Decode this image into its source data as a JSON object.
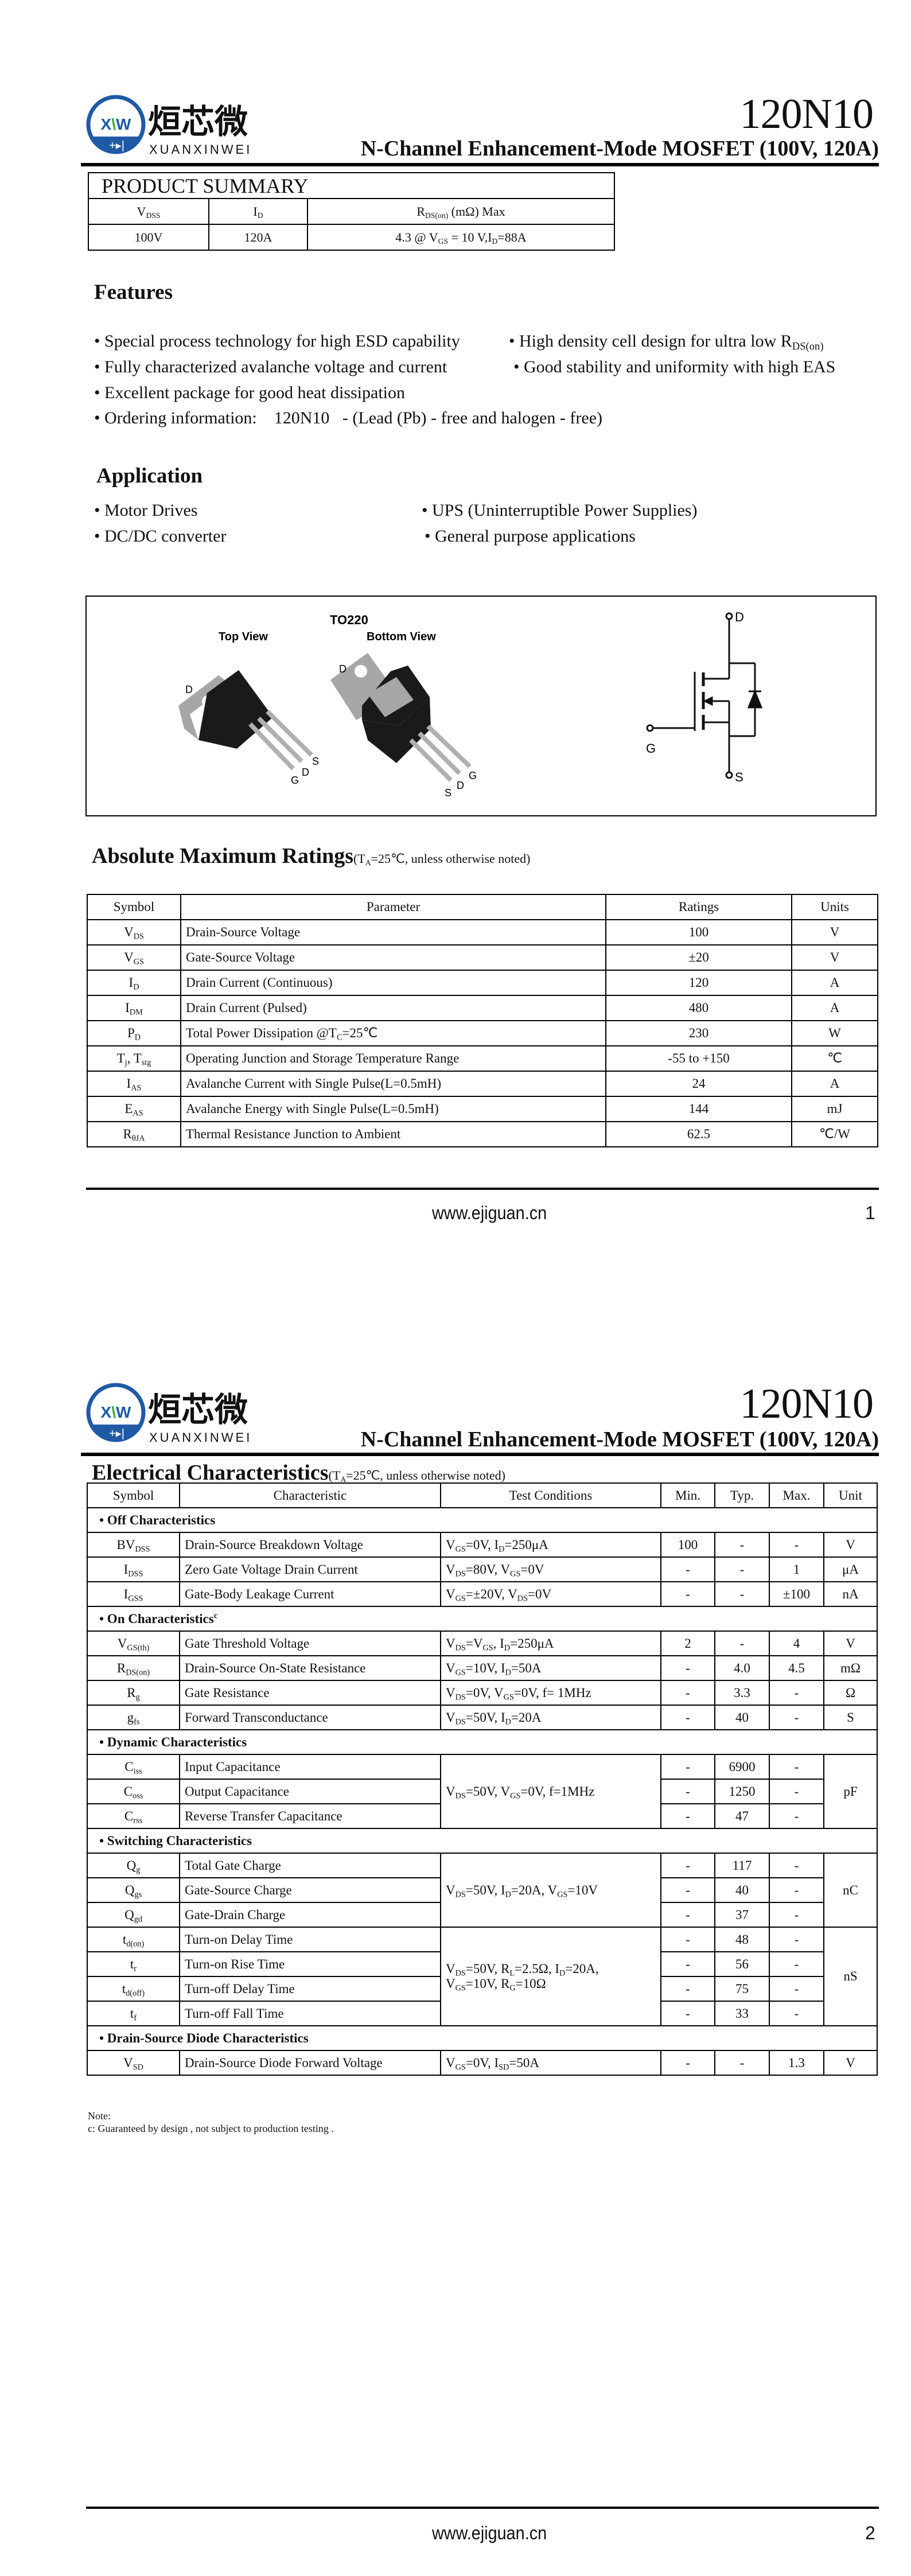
{
  "header": {
    "logo_text_cn": "烜芯微",
    "logo_text_en": "XUANXINWEI",
    "logo_mark": "XW",
    "part_number": "120N10",
    "subtitle": "N-Channel Enhancement-Mode MOSFET (100V, 120A)"
  },
  "colors": {
    "logo_blue": "#1f5aa6",
    "logo_green": "#3aa935",
    "package_gray": "#a6a6a6",
    "package_black": "#1a1a1a"
  },
  "product_summary": {
    "title": "PRODUCT SUMMARY",
    "headers": [
      "V_{DSS}",
      "I_{D}",
      "R_{DS(on)} (mΩ) Max"
    ],
    "values": [
      "100V",
      "120A",
      "4.3 @ V_{GS} = 10 V,I_{D}=88A"
    ]
  },
  "features": {
    "heading": "Features",
    "items": [
      "• Special process technology for high ESD capability",
      "• High density cell design for ultra low R_{DS(on)}",
      "• Fully characterized avalanche voltage and current",
      "• Good stability and uniformity with high EAS",
      "• Excellent package for good heat dissipation",
      "• Ordering information:    120N10   - (Lead (Pb) - free and halogen - free)"
    ]
  },
  "application": {
    "heading": "Application",
    "items": [
      "• Motor Drives",
      "• UPS (Uninterruptible Power Supplies)",
      "• DC/DC converter",
      "• General purpose applications"
    ]
  },
  "package": {
    "name": "TO220",
    "top_view": "Top View",
    "bottom_view": "Bottom View",
    "top_pins": {
      "tab": "D",
      "g": "G",
      "d": "D",
      "s": "S"
    },
    "bottom_pins": {
      "tab": "D",
      "s": "S",
      "d": "D",
      "g": "G"
    },
    "schematic": {
      "drain": "D",
      "gate": "G",
      "source": "S"
    }
  },
  "abs_max": {
    "title": "Absolute Maximum Ratings",
    "note": "(T_{A}=25℃, unless otherwise noted)",
    "headers": [
      "Symbol",
      "Parameter",
      "Ratings",
      "Units"
    ],
    "rows": [
      [
        "V_{DS}",
        "Drain-Source Voltage",
        "100",
        "V"
      ],
      [
        "V_{GS}",
        "Gate-Source Voltage",
        "±20",
        "V"
      ],
      [
        "I_{D}",
        "Drain Current (Continuous)",
        "120",
        "A"
      ],
      [
        "I_{DM}",
        "Drain Current (Pulsed)",
        "480",
        "A"
      ],
      [
        "P_{D}",
        "Total Power Dissipation @T_{C}=25℃",
        "230",
        "W"
      ],
      [
        "T_{j}, T_{stg}",
        "Operating Junction and Storage Temperature Range",
        "-55 to +150",
        "℃"
      ],
      [
        "I_{AS}",
        "Avalanche Current with Single Pulse(L=0.5mH)",
        "24",
        "A"
      ],
      [
        "E_{AS}",
        "Avalanche Energy with Single Pulse(L=0.5mH)",
        "144",
        "mJ"
      ],
      [
        "R_{θJA}",
        "Thermal Resistance Junction to Ambient",
        "62.5",
        "℃/W"
      ]
    ]
  },
  "electrical": {
    "title": "Electrical Characteristics",
    "note": "(T_{A}=25℃, unless otherwise noted)",
    "headers": [
      "Symbol",
      "Characteristic",
      "Test Conditions",
      "Min.",
      "Typ.",
      "Max.",
      "Unit"
    ],
    "sections": [
      {
        "title": "• Off Characteristics",
        "groups": [
          {
            "conditions": [
              "V_{GS}=0V, I_{D}=250μA"
            ],
            "unit": "V",
            "rows": [
              [
                "BV_{DSS}",
                "Drain-Source Breakdown Voltage",
                "100",
                "-",
                "-"
              ]
            ]
          },
          {
            "conditions": [
              "V_{DS}=80V, V_{GS}=0V"
            ],
            "unit": "μA",
            "rows": [
              [
                "I_{DSS}",
                "Zero Gate Voltage Drain Current",
                "-",
                "-",
                "1"
              ]
            ]
          },
          {
            "conditions": [
              "V_{GS}=±20V, V_{DS}=0V"
            ],
            "unit": "nA",
            "rows": [
              [
                "I_{GSS}",
                "Gate-Body Leakage Current",
                "-",
                "-",
                "±100"
              ]
            ]
          }
        ]
      },
      {
        "title": "• On Characteristics^{c}",
        "groups": [
          {
            "conditions": [
              "V_{DS}=V_{GS}, I_{D}=250μA"
            ],
            "unit": "V",
            "rows": [
              [
                "V_{GS(th)}",
                "Gate Threshold Voltage",
                "2",
                "-",
                "4"
              ]
            ]
          },
          {
            "conditions": [
              "V_{GS}=10V, I_{D}=50A"
            ],
            "unit": "mΩ",
            "rows": [
              [
                "R_{DS(on)}",
                "Drain-Source On-State Resistance",
                "-",
                "4.0",
                "4.5"
              ]
            ]
          },
          {
            "conditions": [
              "V_{DS}=0V, V_{GS}=0V, f= 1MHz"
            ],
            "unit": "Ω",
            "rows": [
              [
                "R_{g}",
                "Gate Resistance",
                "-",
                "3.3",
                "-"
              ]
            ]
          },
          {
            "conditions": [
              "V_{DS}=50V, I_{D}=20A"
            ],
            "unit": "S",
            "rows": [
              [
                "g_{fs}",
                "Forward Transconductance",
                "-",
                "40",
                "-"
              ]
            ]
          }
        ]
      },
      {
        "title": "• Dynamic Characteristics",
        "groups": [
          {
            "conditions": [
              "V_{DS}=50V, V_{GS}=0V, f=1MHz"
            ],
            "unit": "pF",
            "rows": [
              [
                "C_{iss}",
                "Input Capacitance",
                "-",
                "6900",
                "-"
              ],
              [
                "C_{oss}",
                "Output Capacitance",
                "-",
                "1250",
                "-"
              ],
              [
                "C_{rss}",
                "Reverse Transfer Capacitance",
                "-",
                "47",
                "-"
              ]
            ]
          }
        ]
      },
      {
        "title": "• Switching Characteristics",
        "groups": [
          {
            "conditions": [
              "V_{DS}=50V, I_{D}=20A, V_{GS}=10V"
            ],
            "unit": "nC",
            "rows": [
              [
                "Q_{g}",
                "Total Gate Charge",
                "-",
                "117",
                "-"
              ],
              [
                "Q_{gs}",
                "Gate-Source Charge",
                "-",
                "40",
                "-"
              ],
              [
                "Q_{gd}",
                "Gate-Drain Charge",
                "-",
                "37",
                "-"
              ]
            ]
          },
          {
            "conditions": [
              "V_{DS}=50V, R_{L}=2.5Ω, I_{D}=20A,",
              "V_{GS}=10V, R_{G}=10Ω"
            ],
            "unit": "nS",
            "rows": [
              [
                "t_{d(on)}",
                "Turn-on Delay Time",
                "-",
                "48",
                "-"
              ],
              [
                "t_{r}",
                "Turn-on Rise Time",
                "-",
                "56",
                "-"
              ],
              [
                "t_{d(off)}",
                "Turn-off Delay Time",
                "-",
                "75",
                "-"
              ],
              [
                "t_{f}",
                "Turn-off Fall Time",
                "-",
                "33",
                "-"
              ]
            ]
          }
        ]
      },
      {
        "title": "• Drain-Source Diode Characteristics",
        "groups": [
          {
            "conditions": [
              "V_{GS}=0V, I_{SD}=50A"
            ],
            "unit": "V",
            "rows": [
              [
                "V_{SD}",
                "Drain-Source Diode Forward Voltage",
                "-",
                "-",
                "1.3"
              ]
            ]
          }
        ]
      }
    ],
    "note_label": "Note:",
    "note_c": "c: Guaranteed by design , not subject to production testing ."
  },
  "footer": {
    "url": "www.ejiguan.cn",
    "pages": [
      "1",
      "2"
    ]
  }
}
